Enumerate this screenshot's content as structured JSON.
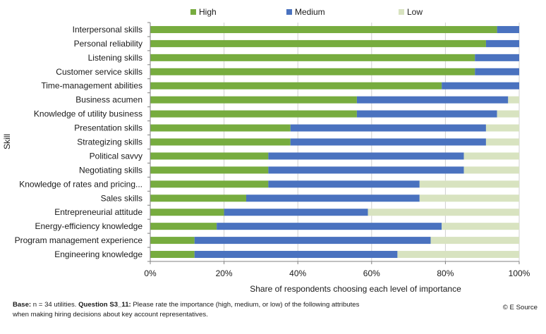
{
  "chart_data": {
    "type": "bar",
    "orientation": "horizontal",
    "stacked": "percent",
    "ylabel": "Skill",
    "xlabel": "Share of respondents choosing each level of importance",
    "x_ticks": [
      "0%",
      "20%",
      "40%",
      "60%",
      "80%",
      "100%"
    ],
    "xlim": [
      0,
      100
    ],
    "legend_position": "top",
    "categories": [
      "Interpersonal skills",
      "Personal reliability",
      "Listening skills",
      "Customer service skills",
      "Time-management abilities",
      "Business acumen",
      "Knowledge of utility business",
      "Presentation skills",
      "Strategizing skills",
      "Political savvy",
      "Negotiating skills",
      "Knowledge of rates and pricing...",
      "Sales skills",
      "Entrepreneurial attitude",
      "Energy-efficiency knowledge",
      "Program management experience",
      "Engineering knowledge"
    ],
    "series": [
      {
        "name": "High",
        "color": "#77ac3f",
        "values": [
          94,
          91,
          88,
          88,
          79,
          56,
          56,
          38,
          38,
          32,
          32,
          32,
          26,
          20,
          18,
          12,
          12
        ]
      },
      {
        "name": "Medium",
        "color": "#4a72bf",
        "values": [
          6,
          9,
          12,
          12,
          21,
          41,
          38,
          53,
          53,
          53,
          53,
          41,
          47,
          39,
          61,
          64,
          55
        ]
      },
      {
        "name": "Low",
        "color": "#d8e3c0",
        "values": [
          0,
          0,
          0,
          0,
          0,
          3,
          6,
          9,
          9,
          15,
          15,
          27,
          27,
          41,
          21,
          24,
          33
        ]
      }
    ],
    "grid": {
      "x": true,
      "y": false
    }
  },
  "footnote": {
    "base_label": "Base:",
    "base_text": " n = 34 utilities.  ",
    "question_label": "Question S3_11:",
    "question_text": " Please rate the importance  (high, medium,  or low) of the following  attributes",
    "line2": "when making  hiring decisions  about key account  representatives."
  },
  "source": "© E Source"
}
